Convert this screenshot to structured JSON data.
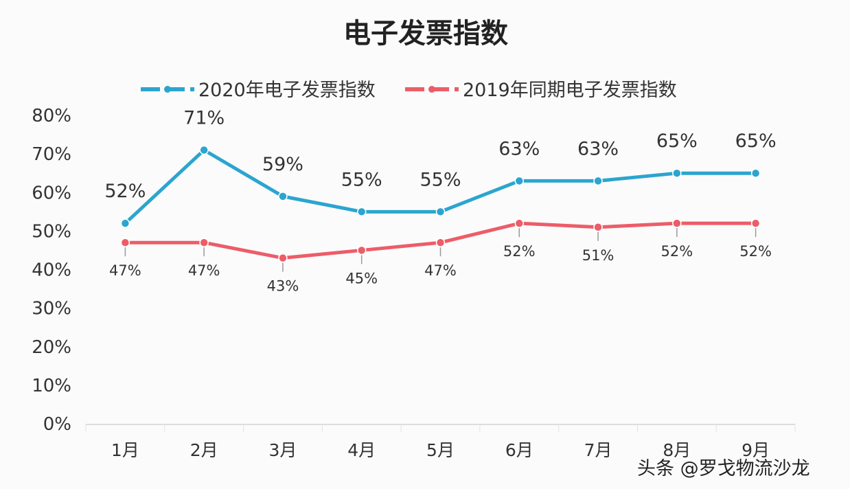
{
  "chart_data": {
    "type": "line",
    "title": "电子发票指数",
    "categories": [
      "1月",
      "2月",
      "3月",
      "4月",
      "5月",
      "6月",
      "7月",
      "8月",
      "9月"
    ],
    "series": [
      {
        "name": "2020年电子发票指数",
        "color": "#2ba5cf",
        "values": [
          52,
          71,
          59,
          55,
          55,
          63,
          63,
          65,
          65
        ],
        "labels": [
          "52%",
          "71%",
          "59%",
          "55%",
          "55%",
          "63%",
          "63%",
          "65%",
          "65%"
        ],
        "label_position": "above"
      },
      {
        "name": "2019年同期电子发票指数",
        "color": "#ec5d69",
        "values": [
          47,
          47,
          43,
          45,
          47,
          52,
          51,
          52,
          52
        ],
        "labels": [
          "47%",
          "47%",
          "43%",
          "45%",
          "47%",
          "52%",
          "51%",
          "52%",
          "52%"
        ],
        "label_position": "below"
      }
    ],
    "ylim": [
      0,
      80
    ],
    "yticks": [
      "0%",
      "10%",
      "20%",
      "30%",
      "40%",
      "50%",
      "60%",
      "70%",
      "80%"
    ],
    "grid": false,
    "legend": "top"
  },
  "watermark": "头条 @罗戈物流沙龙"
}
